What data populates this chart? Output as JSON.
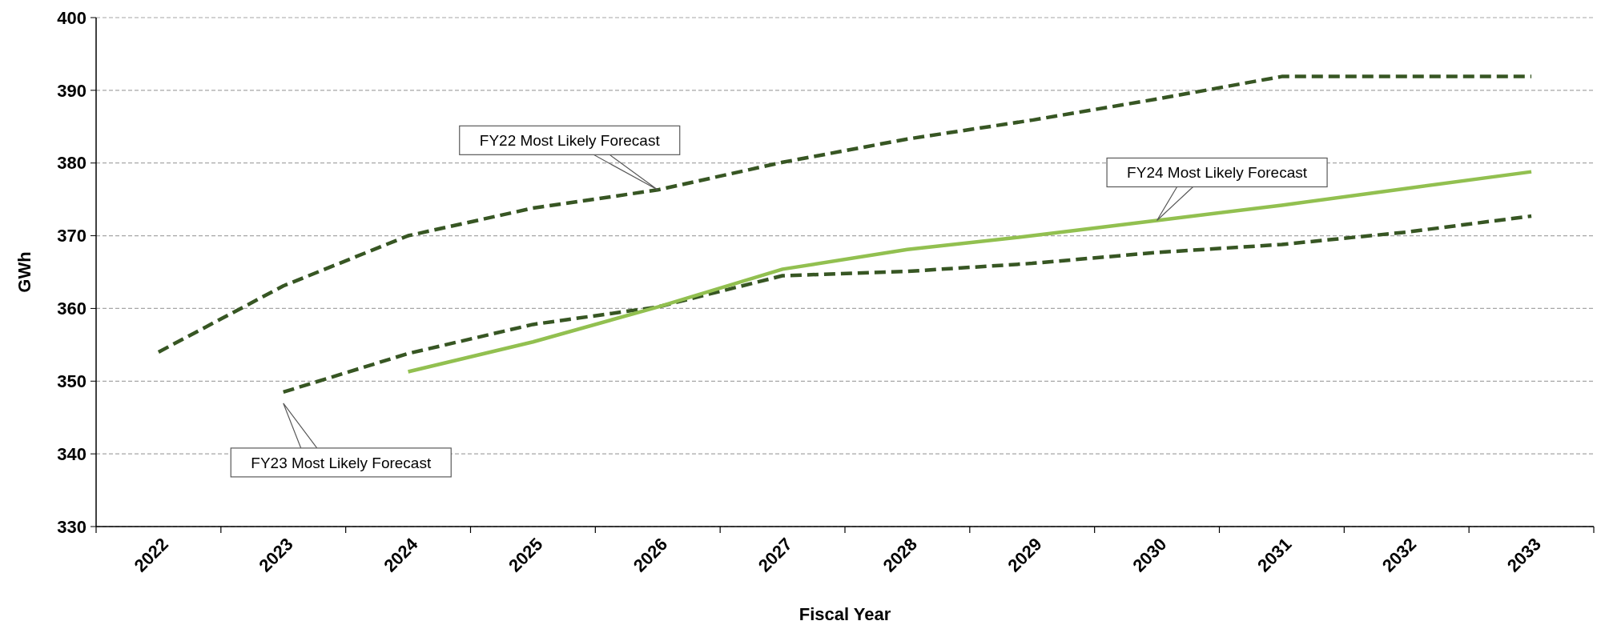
{
  "chart_data": {
    "type": "line",
    "xlabel": "Fiscal Year",
    "ylabel": "GWh",
    "categories": [
      "2022",
      "2023",
      "2024",
      "2025",
      "2026",
      "2027",
      "2028",
      "2029",
      "2030",
      "2031",
      "2032",
      "2033"
    ],
    "series": [
      {
        "color": "#375623",
        "line_style": "dashed",
        "values": [
          354.0,
          363.1,
          370.0,
          373.8,
          376.3,
          380.1,
          383.3,
          385.9,
          388.8,
          391.9,
          391.9,
          391.9
        ]
      },
      {
        "color": "#375623",
        "line_style": "dashed",
        "values": [
          null,
          348.5,
          353.8,
          357.8,
          360.2,
          364.5,
          365.1,
          366.2,
          367.7,
          368.8,
          370.5,
          372.7
        ]
      },
      {
        "color": "#92c050",
        "line_style": "solid",
        "values": [
          null,
          null,
          351.3,
          355.4,
          360.2,
          365.4,
          368.1,
          370.0,
          372.1,
          374.2,
          376.5,
          378.8
        ]
      }
    ],
    "annotations": [
      {
        "text": "FY22 Most Likely Forecast",
        "x": "2026",
        "y": 376.3
      },
      {
        "text": "FY24 Most Likely Forecast",
        "x": "2030",
        "y": 372.1
      },
      "FY23 Most Likely Forecast"
    ],
    "ylim": [
      330,
      400
    ],
    "yticks": [
      330,
      340,
      350,
      360,
      370,
      380,
      390,
      400
    ],
    "grid": "y"
  }
}
